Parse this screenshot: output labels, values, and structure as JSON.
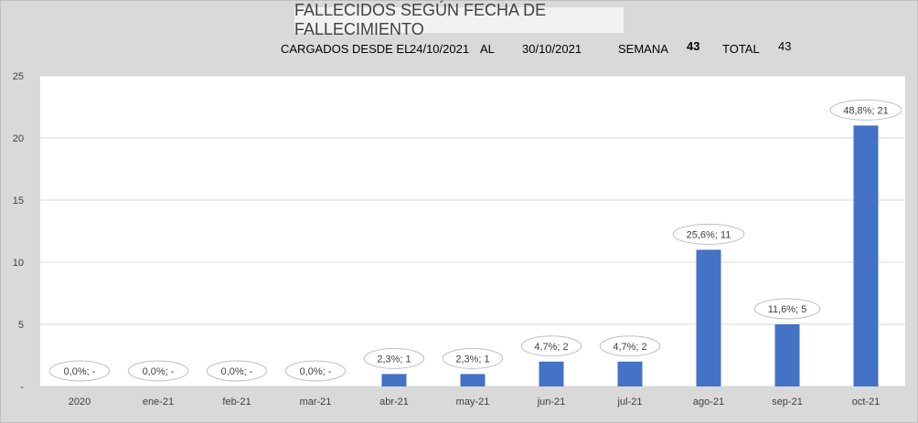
{
  "header": {
    "title": "FALLECIDOS SEGÚN FECHA DE FALLECIMIENTO",
    "cargados_label": "CARGADOS DESDE EL",
    "desde": "24/10/2021",
    "al_label": "AL",
    "hasta": "30/10/2021",
    "semana_label": "SEMANA",
    "semana_value": "43",
    "total_label": "TOTAL",
    "total_value": "43"
  },
  "chart_data": {
    "type": "bar",
    "title": "FALLECIDOS SEGÚN FECHA DE FALLECIMIENTO",
    "categories": [
      "2020",
      "ene-21",
      "feb-21",
      "mar-21",
      "abr-21",
      "may-21",
      "jun-21",
      "jul-21",
      "ago-21",
      "sep-21",
      "oct-21"
    ],
    "values": [
      0,
      0,
      0,
      0,
      1,
      1,
      2,
      2,
      11,
      5,
      21
    ],
    "data_labels": [
      "0,0%; -",
      "0,0%; -",
      "0,0%; -",
      "0,0%; -",
      "2,3%; 1",
      "2,3%; 1",
      "4,7%; 2",
      "4,7%; 2",
      "25,6%; 11",
      "11,6%; 5",
      "48,8%; 21"
    ],
    "yticks": [
      "-",
      "5",
      "10",
      "15",
      "20",
      "25"
    ],
    "ylim": [
      0,
      25
    ],
    "grid": true,
    "colors": {
      "bar": "#4472c4",
      "plot_bg": "#ffffff",
      "chart_bg": "#d9d9d9"
    }
  }
}
